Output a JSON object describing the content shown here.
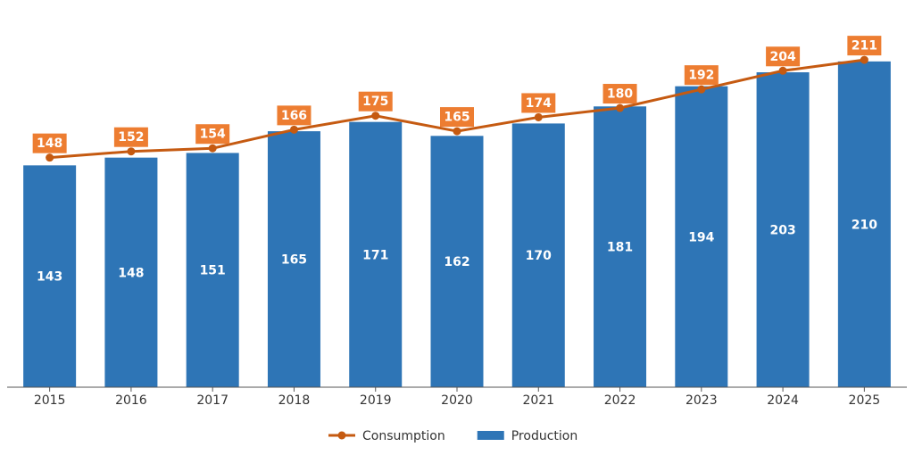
{
  "chart_data": {
    "type": "combo",
    "categories": [
      "2015",
      "2016",
      "2017",
      "2018",
      "2019",
      "2020",
      "2021",
      "2022",
      "2023",
      "2024",
      "2025"
    ],
    "ylim": [
      0,
      245
    ],
    "series": [
      {
        "name": "Production",
        "type": "bar",
        "color": "#2e75b6",
        "values": [
          143,
          148,
          151,
          165,
          171,
          162,
          170,
          181,
          194,
          203,
          210
        ]
      },
      {
        "name": "Consumption",
        "type": "line",
        "color": "#c55a11",
        "label_color": "#ed7d31",
        "values": [
          148,
          152,
          154,
          166,
          175,
          165,
          174,
          180,
          192,
          204,
          211
        ]
      }
    ],
    "legend": "bottom"
  }
}
